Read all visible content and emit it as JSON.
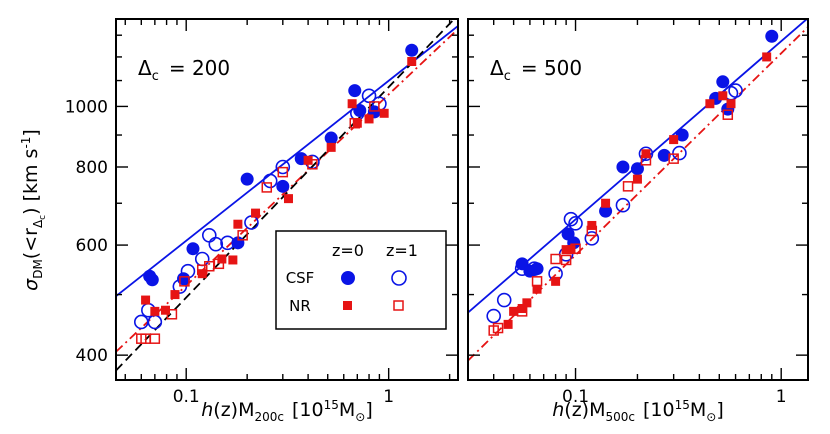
{
  "y_axis_label": {
    "sigma": "σ",
    "sigma_sub": "DM",
    "mid": "(<r",
    "r_sub": "Δ",
    "r_subsub": "c",
    "tail": ") [km s",
    "exp": "-1",
    "close": "]"
  },
  "legend": {
    "col_z0": "z=0",
    "col_z1": "z=1",
    "row_csf": "CSF",
    "row_nr": "NR"
  },
  "colors": {
    "csf": "#0a14e6",
    "nr": "#e61414",
    "self_similar": "#000000"
  },
  "chart_data": [
    {
      "type": "scatter",
      "panel_label": {
        "symbol": "Δ",
        "sub": "c",
        "text": "= 200"
      },
      "xlabel": {
        "h": "h",
        "z": "(z)M",
        "sub": "200c",
        "units": "[10",
        "exp": "15",
        "msun": "M",
        "msun_sub": "⊙",
        "close": "]"
      },
      "x_scale": "log",
      "y_scale": "log",
      "xlim": [
        0.045,
        2.2
      ],
      "ylim": [
        365,
        1380
      ],
      "x_ticks": [
        0.1,
        1
      ],
      "x_tick_labels": [
        "0.1",
        "1"
      ],
      "y_ticks": [
        400,
        600,
        800,
        1000
      ],
      "y_tick_labels": [
        "400",
        "600",
        "800",
        "1000"
      ],
      "series": [
        {
          "marker": "filled-circle",
          "color": "#0a14e6",
          "points": [
            [
              0.066,
              535
            ],
            [
              0.068,
              528
            ],
            [
              0.097,
              530
            ],
            [
              0.108,
              592
            ],
            [
              0.18,
              605
            ],
            [
              0.2,
              765
            ],
            [
              0.3,
              745
            ],
            [
              0.37,
              825
            ],
            [
              0.52,
              890
            ],
            [
              0.68,
              1060
            ],
            [
              0.72,
              985
            ],
            [
              0.85,
              980
            ],
            [
              1.3,
              1230
            ]
          ]
        },
        {
          "marker": "open-circle",
          "color": "#0a14e6",
          "points": [
            [
              0.06,
              452
            ],
            [
              0.065,
              472
            ],
            [
              0.07,
              452
            ],
            [
              0.093,
              515
            ],
            [
              0.102,
              545
            ],
            [
              0.12,
              570
            ],
            [
              0.13,
              622
            ],
            [
              0.14,
              602
            ],
            [
              0.16,
              605
            ],
            [
              0.21,
              652
            ],
            [
              0.26,
              760
            ],
            [
              0.3,
              800
            ],
            [
              0.42,
              815
            ],
            [
              0.7,
              975
            ],
            [
              0.8,
              1040
            ],
            [
              0.9,
              1010
            ]
          ]
        },
        {
          "marker": "filled-square",
          "color": "#e61414",
          "points": [
            [
              0.063,
              490
            ],
            [
              0.07,
              470
            ],
            [
              0.079,
              472
            ],
            [
              0.088,
              500
            ],
            [
              0.12,
              540
            ],
            [
              0.15,
              570
            ],
            [
              0.17,
              568
            ],
            [
              0.18,
              648
            ],
            [
              0.22,
              675
            ],
            [
              0.32,
              712
            ],
            [
              0.4,
              820
            ],
            [
              0.52,
              860
            ],
            [
              0.66,
              1010
            ],
            [
              0.7,
              940
            ],
            [
              0.8,
              955
            ],
            [
              0.95,
              975
            ],
            [
              1.3,
              1180
            ]
          ]
        },
        {
          "marker": "open-square",
          "color": "#e61414",
          "points": [
            [
              0.06,
              425
            ],
            [
              0.063,
              425
            ],
            [
              0.07,
              425
            ],
            [
              0.085,
              465
            ],
            [
              0.098,
              525
            ],
            [
              0.12,
              548
            ],
            [
              0.13,
              555
            ],
            [
              0.145,
              560
            ],
            [
              0.19,
              622
            ],
            [
              0.25,
              742
            ],
            [
              0.3,
              785
            ],
            [
              0.42,
              808
            ],
            [
              0.68,
              940
            ],
            [
              0.85,
              1000
            ]
          ]
        }
      ],
      "fits": [
        {
          "style": "solid",
          "color": "#0a14e6",
          "x": [
            0.045,
            2.2
          ],
          "y": [
            497,
            1345
          ]
        },
        {
          "style": "dash-dot",
          "color": "#e61414",
          "x": [
            0.045,
            2.2
          ],
          "y": [
            405,
            1330
          ]
        },
        {
          "style": "dashed",
          "color": "#000000",
          "x": [
            0.045,
            2.2
          ],
          "y": [
            378,
            1400
          ]
        }
      ]
    },
    {
      "type": "scatter",
      "panel_label": {
        "symbol": "Δ",
        "sub": "c",
        "text": "= 500"
      },
      "xlabel": {
        "h": "h",
        "z": "(z)M",
        "sub": "500c",
        "units": "[10",
        "exp": "15",
        "msun": "M",
        "msun_sub": "⊙",
        "close": "]"
      },
      "x_scale": "log",
      "y_scale": "log",
      "xlim": [
        0.03,
        1.35
      ],
      "ylim": [
        365,
        1380
      ],
      "x_ticks": [
        0.1,
        1
      ],
      "x_tick_labels": [
        "0.1",
        "1"
      ],
      "y_ticks": [
        400,
        600,
        800,
        1000
      ],
      "y_tick_labels": [
        "400",
        "600",
        "800",
        "1000"
      ],
      "series": [
        {
          "marker": "filled-circle",
          "color": "#0a14e6",
          "points": [
            [
              0.055,
              560
            ],
            [
              0.06,
              545
            ],
            [
              0.065,
              550
            ],
            [
              0.092,
              625
            ],
            [
              0.098,
              605
            ],
            [
              0.14,
              680
            ],
            [
              0.17,
              800
            ],
            [
              0.2,
              795
            ],
            [
              0.27,
              835
            ],
            [
              0.33,
              900
            ],
            [
              0.48,
              1030
            ],
            [
              0.52,
              1095
            ],
            [
              0.55,
              990
            ],
            [
              0.9,
              1295
            ]
          ]
        },
        {
          "marker": "open-circle",
          "color": "#0a14e6",
          "points": [
            [
              0.04,
              462
            ],
            [
              0.045,
              490
            ],
            [
              0.055,
              550
            ],
            [
              0.063,
              550
            ],
            [
              0.08,
              540
            ],
            [
              0.09,
              580
            ],
            [
              0.095,
              660
            ],
            [
              0.1,
              650
            ],
            [
              0.12,
              615
            ],
            [
              0.17,
              695
            ],
            [
              0.22,
              840
            ],
            [
              0.32,
              842
            ],
            [
              0.57,
              1050
            ],
            [
              0.6,
              1060
            ]
          ]
        },
        {
          "marker": "filled-square",
          "color": "#e61414",
          "points": [
            [
              0.047,
              448
            ],
            [
              0.05,
              470
            ],
            [
              0.055,
              475
            ],
            [
              0.058,
              485
            ],
            [
              0.065,
              510
            ],
            [
              0.08,
              525
            ],
            [
              0.09,
              590
            ],
            [
              0.095,
              590
            ],
            [
              0.12,
              645
            ],
            [
              0.14,
              700
            ],
            [
              0.2,
              765
            ],
            [
              0.22,
              840
            ],
            [
              0.3,
              885
            ],
            [
              0.45,
              1010
            ],
            [
              0.52,
              1040
            ],
            [
              0.57,
              1010
            ],
            [
              0.85,
              1200
            ]
          ]
        },
        {
          "marker": "open-square",
          "color": "#e61414",
          "points": [
            [
              0.04,
              438
            ],
            [
              0.042,
              442
            ],
            [
              0.055,
              470
            ],
            [
              0.065,
              525
            ],
            [
              0.08,
              570
            ],
            [
              0.09,
              568
            ],
            [
              0.1,
              592
            ],
            [
              0.12,
              632
            ],
            [
              0.18,
              745
            ],
            [
              0.22,
              820
            ],
            [
              0.3,
              825
            ],
            [
              0.55,
              970
            ]
          ]
        }
      ],
      "fits": [
        {
          "style": "solid",
          "color": "#0a14e6",
          "x": [
            0.03,
            1.35
          ],
          "y": [
            468,
            1385
          ]
        },
        {
          "style": "dash-dot",
          "color": "#e61414",
          "x": [
            0.03,
            1.35
          ],
          "y": [
            392,
            1340
          ]
        }
      ]
    }
  ]
}
